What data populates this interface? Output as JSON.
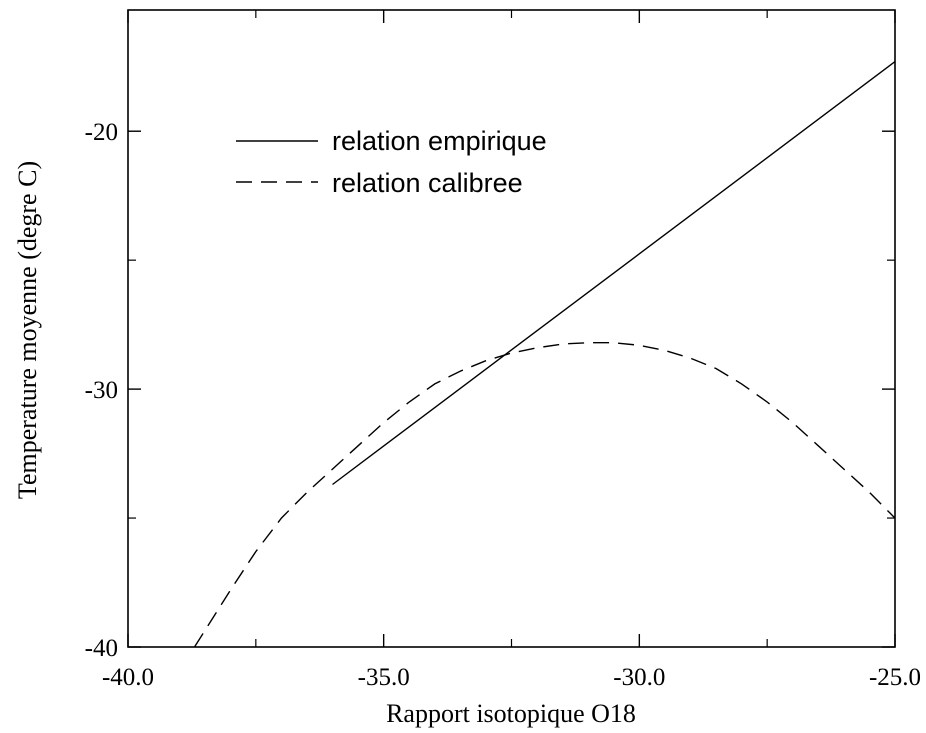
{
  "chart_data": {
    "type": "line",
    "title": "",
    "xlabel": "Rapport isotopique O18",
    "ylabel": "Temperature moyenne (degre C)",
    "xlim": [
      -40.0,
      -25.0
    ],
    "ylim": [
      -40,
      -15.3
    ],
    "x_ticks": [
      {
        "value": -40.0,
        "label": "-40.0"
      },
      {
        "value": -35.0,
        "label": "-35.0"
      },
      {
        "value": -30.0,
        "label": "-30.0"
      },
      {
        "value": -25.0,
        "label": "-25.0"
      }
    ],
    "y_ticks": [
      {
        "value": -40,
        "label": "-40"
      },
      {
        "value": -30,
        "label": "-30"
      },
      {
        "value": -20,
        "label": "-20"
      }
    ],
    "x_minor_ticks": [
      -37.5,
      -32.5,
      -27.5
    ],
    "y_minor_ticks": [
      -35,
      -25
    ],
    "grid": false,
    "legend_position": "top-left",
    "series": [
      {
        "name": "relation empirique",
        "style": "solid",
        "color": "#000000",
        "x": [
          -36.0,
          -25.0
        ],
        "y": [
          -33.7,
          -17.3
        ]
      },
      {
        "name": "relation calibree",
        "style": "dashed",
        "color": "#000000",
        "x": [
          -38.7,
          -38.0,
          -37.5,
          -37.0,
          -36.5,
          -36.0,
          -35.5,
          -35.0,
          -34.5,
          -34.0,
          -33.5,
          -33.0,
          -32.5,
          -32.0,
          -31.5,
          -31.0,
          -30.5,
          -30.0,
          -29.5,
          -29.0,
          -28.5,
          -28.0,
          -27.5,
          -27.0,
          -26.5,
          -26.0,
          -25.5,
          -25.0
        ],
        "y": [
          -40.0,
          -37.8,
          -36.3,
          -35.0,
          -34.0,
          -33.1,
          -32.2,
          -31.3,
          -30.5,
          -29.8,
          -29.3,
          -28.9,
          -28.6,
          -28.4,
          -28.25,
          -28.2,
          -28.2,
          -28.3,
          -28.5,
          -28.8,
          -29.2,
          -29.8,
          -30.5,
          -31.3,
          -32.2,
          -33.1,
          -34.0,
          -35.0
        ]
      }
    ]
  }
}
